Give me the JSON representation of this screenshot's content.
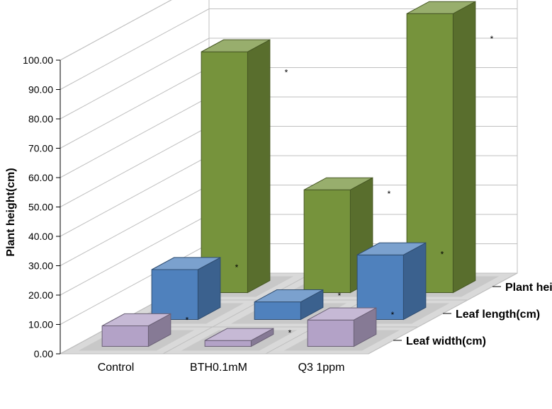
{
  "chart": {
    "type": "bar3d",
    "y_axis": {
      "title": "Plant height(cm)",
      "min": 0,
      "max": 100,
      "step": 10,
      "title_fontsize": 16,
      "tick_fontsize": 14
    },
    "categories": [
      "Control",
      "BTH0.1mM",
      "Q3 1ppm"
    ],
    "series": [
      {
        "name": "Leaf width(cm)",
        "color": "#b3a2c7",
        "values": [
          7,
          2,
          9
        ]
      },
      {
        "name": "Leaf   length(cm)",
        "color": "#4f81bd",
        "values": [
          17,
          6,
          22
        ]
      },
      {
        "name": "Plant height(cm)",
        "color": "#76933c",
        "values": [
          82,
          35,
          95
        ]
      }
    ],
    "background_color": "#ffffff",
    "floor_color": "#d9d9d9",
    "floor_spot_color": "#c8c8c8",
    "grid_color": "#bfbfbf",
    "marker_star_color": "#000000",
    "label_fontsize": 16
  }
}
